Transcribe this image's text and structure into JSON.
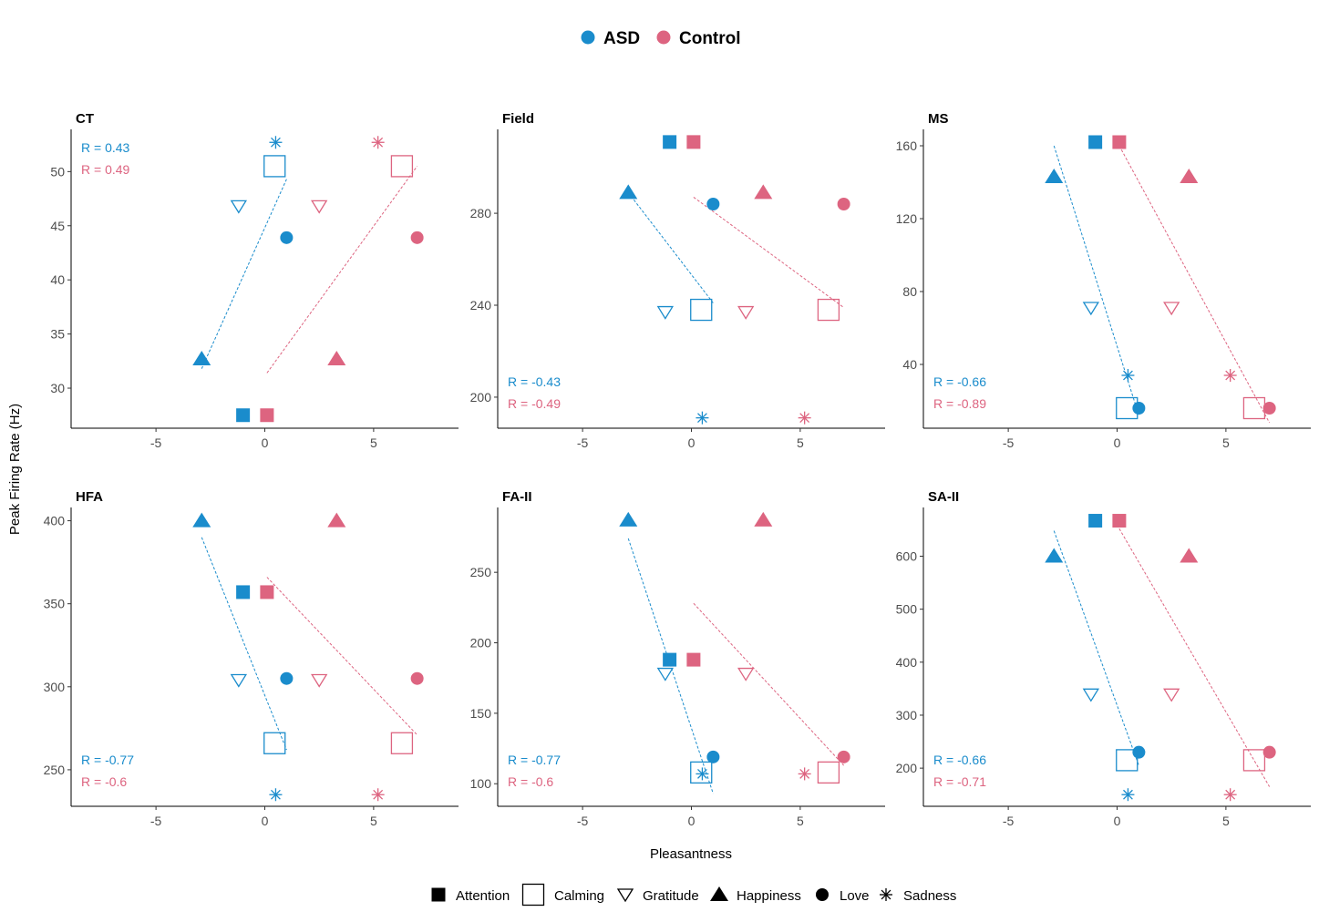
{
  "colors": {
    "ASD": "#1a8ccc",
    "Control": "#dd6480",
    "axis": "#000000",
    "tick_text": "#4d4d4d",
    "text": "#000000"
  },
  "chart_data": {
    "type": "scatter",
    "group_legend": {
      "entries": [
        "ASD",
        "Control"
      ],
      "marker": "filled-circle",
      "position": "top"
    },
    "shape_legend": {
      "position": "bottom",
      "entries": [
        {
          "label": "Attention",
          "shape": "square-filled"
        },
        {
          "label": "Calming",
          "shape": "square-open"
        },
        {
          "label": "Gratitude",
          "shape": "triangle-down-open"
        },
        {
          "label": "Happiness",
          "shape": "triangle-filled"
        },
        {
          "label": "Love",
          "shape": "circle-filled"
        },
        {
          "label": "Sadness",
          "shape": "asterisk"
        }
      ]
    },
    "xlabel": "Pleasantness",
    "ylabel": "Peak Firing Rate (Hz)",
    "xlim": [
      -8.9,
      8.9
    ],
    "x_ticks": [
      -5,
      0,
      5
    ],
    "grid": false,
    "x_values": {
      "ASD": {
        "Attention": -1.0,
        "Calming": 0.45,
        "Gratitude": -1.2,
        "Happiness": -2.9,
        "Love": 1.0,
        "Sadness": 0.5
      },
      "Control": {
        "Attention": 0.1,
        "Calming": 6.3,
        "Gratitude": 2.5,
        "Happiness": 3.3,
        "Love": 7.0,
        "Sadness": 5.2
      }
    },
    "panels": [
      {
        "title": "CT",
        "ylim": [
          26.3,
          53.9
        ],
        "y_ticks": [
          30,
          35,
          40,
          45,
          50
        ],
        "y": {
          "Attention": 27.5,
          "Calming": 50.5,
          "Gratitude": 46.8,
          "Happiness": 32.7,
          "Love": 43.9,
          "Sadness": 52.7
        },
        "r_labels": {
          "ASD": "R = 0.43",
          "Control": "R = 0.49"
        },
        "r_position": "top-left",
        "fit": {
          "ASD": [
            [
              -2.9,
              31.8
            ],
            [
              1.0,
              49.3
            ]
          ],
          "Control": [
            [
              0.1,
              31.4
            ],
            [
              7.0,
              50.5
            ]
          ]
        }
      },
      {
        "title": "Field",
        "ylim": [
          186.5,
          316.5
        ],
        "y_ticks": [
          200,
          240,
          280
        ],
        "y": {
          "Attention": 311,
          "Calming": 238,
          "Gratitude": 237,
          "Happiness": 289,
          "Love": 284,
          "Sadness": 191
        },
        "r_labels": {
          "ASD": "R = -0.43",
          "Control": "R = -0.49"
        },
        "r_position": "bottom-left",
        "fit": {
          "ASD": [
            [
              -2.9,
              289
            ],
            [
              1.0,
              241
            ]
          ],
          "Control": [
            [
              0.1,
              287
            ],
            [
              7.0,
              239
            ]
          ]
        }
      },
      {
        "title": "MS",
        "ylim": [
          5,
          169
        ],
        "y_ticks": [
          40,
          80,
          120,
          160
        ],
        "y": {
          "Attention": 162,
          "Calming": 16,
          "Gratitude": 71,
          "Happiness": 143,
          "Love": 16,
          "Sadness": 34
        },
        "r_labels": {
          "ASD": "R = -0.66",
          "Control": "R = -0.89"
        },
        "r_position": "bottom-left",
        "fit": {
          "ASD": [
            [
              -2.9,
              160
            ],
            [
              1.0,
              12
            ]
          ],
          "Control": [
            [
              0.1,
              160
            ],
            [
              7.0,
              8
            ]
          ]
        }
      },
      {
        "title": "HFA",
        "ylim": [
          228,
          408
        ],
        "y_ticks": [
          250,
          300,
          350,
          400
        ],
        "y": {
          "Attention": 357,
          "Calming": 266,
          "Gratitude": 304,
          "Happiness": 400,
          "Love": 305,
          "Sadness": 235
        },
        "r_labels": {
          "ASD": "R = -0.77",
          "Control": "R = -0.6"
        },
        "r_position": "bottom-left",
        "fit": {
          "ASD": [
            [
              -2.9,
              390
            ],
            [
              1.0,
              262
            ]
          ],
          "Control": [
            [
              0.1,
              366
            ],
            [
              7.0,
              271
            ]
          ]
        }
      },
      {
        "title": "FA-II",
        "ylim": [
          84,
          296
        ],
        "y_ticks": [
          100,
          150,
          200,
          250
        ],
        "y": {
          "Attention": 188,
          "Calming": 108,
          "Gratitude": 178,
          "Happiness": 287,
          "Love": 119,
          "Sadness": 107
        },
        "r_labels": {
          "ASD": "R = -0.77",
          "Control": "R = -0.6"
        },
        "r_position": "bottom-left",
        "fit": {
          "ASD": [
            [
              -2.9,
              274
            ],
            [
              1.0,
              93
            ]
          ],
          "Control": [
            [
              0.1,
              228
            ],
            [
              7.0,
              113
            ]
          ]
        }
      },
      {
        "title": "SA-II",
        "ylim": [
          128,
          692
        ],
        "y_ticks": [
          200,
          300,
          400,
          500,
          600
        ],
        "y": {
          "Attention": 667,
          "Calming": 215,
          "Gratitude": 339,
          "Happiness": 600,
          "Love": 230,
          "Sadness": 150
        },
        "r_labels": {
          "ASD": "R = -0.66",
          "Control": "R = -0.71"
        },
        "r_position": "bottom-left",
        "fit": {
          "ASD": [
            [
              -2.9,
              648
            ],
            [
              1.0,
              205
            ]
          ],
          "Control": [
            [
              0.1,
              652
            ],
            [
              7.0,
              165
            ]
          ]
        }
      }
    ]
  }
}
